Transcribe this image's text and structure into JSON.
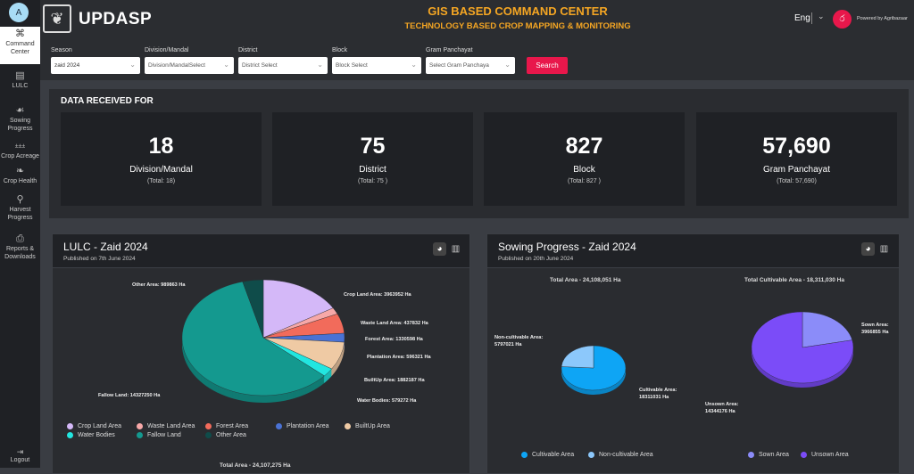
{
  "header": {
    "avatar": "A",
    "app_name": "UPDASP",
    "title": "GIS BASED COMMAND CENTER",
    "subtitle": "TECHNOLOGY BASED CROP MAPPING & MONITORING",
    "language": "Eng",
    "powered_by": "Powered by Agribazaar",
    "accent": "#f5a623"
  },
  "sidebar": {
    "items": [
      {
        "label": "Command Center",
        "icon": "command-icon",
        "active": true
      },
      {
        "label": "LULC",
        "icon": "map-layers-icon"
      },
      {
        "label": "Sowing Progress",
        "icon": "sowing-icon"
      },
      {
        "label": "Crop Acreage",
        "icon": "crop-acreage-icon"
      },
      {
        "label": "Crop Health",
        "icon": "crop-health-icon"
      },
      {
        "label": "Harvest Progress",
        "icon": "harvest-icon"
      },
      {
        "label": "Reports & Downloads",
        "icon": "reports-icon"
      }
    ],
    "logout": "Logout"
  },
  "filters": {
    "season": {
      "label": "Season",
      "value": "zaid 2024"
    },
    "division": {
      "label": "Division/Mandal",
      "placeholder": "Division/MandalSelect"
    },
    "district": {
      "label": "District",
      "placeholder": "District Select"
    },
    "block": {
      "label": "Block",
      "placeholder": "Block Select"
    },
    "gp": {
      "label": "Gram Panchayat",
      "placeholder": "Select Gram Panchaya"
    },
    "search": "Search",
    "search_color": "#e8174b"
  },
  "data_received": {
    "heading": "DATA RECEIVED FOR",
    "cards": [
      {
        "value": "18",
        "label": "Division/Mandal",
        "total": "(Total: 18)"
      },
      {
        "value": "75",
        "label": "District",
        "total": "(Total: 75 )"
      },
      {
        "value": "827",
        "label": "Block",
        "total": "(Total: 827 )"
      },
      {
        "value": "57,690",
        "label": "Gram Panchayat",
        "total": "(Total: 57,690)"
      }
    ]
  },
  "chart_data": [
    {
      "type": "pie",
      "title": "LULC - Zaid 2024",
      "subtitle": "Published on 7th June 2024",
      "footer": "Total Area - 24,107,275 Ha",
      "unit": "Ha",
      "slices": [
        {
          "name": "Crop Land Area",
          "value": 3963952,
          "label": "Crop Land Area: 3963952 Ha",
          "color": "#d4b8f8"
        },
        {
          "name": "Waste Land Area",
          "value": 437832,
          "label": "Waste Land Area: 437832 Ha",
          "color": "#f7a8a8"
        },
        {
          "name": "Forest Area",
          "value": 1330598,
          "label": "Forest Area: 1330598 Ha",
          "color": "#f26b5b"
        },
        {
          "name": "Plantation Area",
          "value": 596321,
          "label": "Plantation Area: 596321 Ha",
          "color": "#4a72d4"
        },
        {
          "name": "BuiltUp Area",
          "value": 1882187,
          "label": "BuiltUp Area: 1882187 Ha",
          "color": "#efcaa4"
        },
        {
          "name": "Water Bodies",
          "value": 579272,
          "label": "Water Bodies: 579272 Ha",
          "color": "#22e6e0"
        },
        {
          "name": "Fallow Land",
          "value": 14327250,
          "label": "Fallow Land: 14327250 Ha",
          "color": "#14998f"
        },
        {
          "name": "Other Area",
          "value": 989863,
          "label": "Other Area: 989863 Ha",
          "color": "#0f4c4a"
        }
      ]
    },
    {
      "type": "pie",
      "title": "Sowing Progress - Zaid 2024",
      "subtitle": "Published on 20th June 2024",
      "chart_title": "Total Area - 24,108,051 Ha",
      "slices": [
        {
          "name": "Cultivable Area",
          "value": 18311031,
          "label": "Cultivable Area:",
          "label2": "18311031 Ha",
          "color": "#0ea5f5"
        },
        {
          "name": "Non-cultivable Area",
          "value": 5797021,
          "label": "Non-cultivable Area:",
          "label2": "5797021 Ha",
          "color": "#8cc8fb"
        }
      ]
    },
    {
      "type": "pie",
      "chart_title": "Total Cultivable Area - 18,311,030 Ha",
      "slices": [
        {
          "name": "Sown Area",
          "value": 3966855,
          "label": "Sown Area:",
          "label2": "3966855 Ha",
          "color": "#8b8cf9"
        },
        {
          "name": "Unsown Area",
          "value": 14344176,
          "label": "Unsown Area:",
          "label2": "14344176 Ha",
          "color": "#7b4cf8"
        }
      ]
    }
  ]
}
